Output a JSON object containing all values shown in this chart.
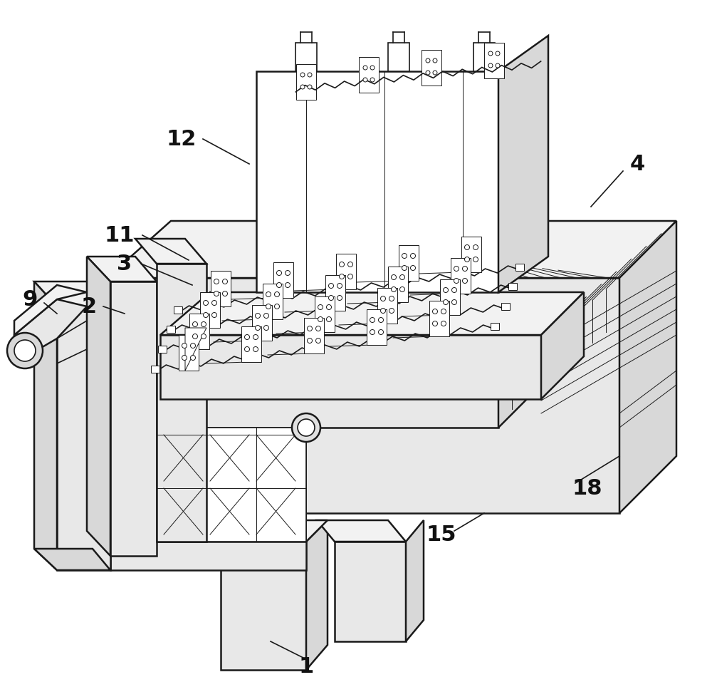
{
  "bg_color": "#ffffff",
  "line_color": "#1a1a1a",
  "fill_white": "#ffffff",
  "fill_light": "#f2f2f2",
  "fill_medium": "#d8d8d8",
  "fill_dark": "#b8b8b8",
  "fill_base": "#e8e8e8",
  "label_fontsize": 22,
  "figsize": [
    10.0,
    9.71
  ],
  "dpi": 100
}
